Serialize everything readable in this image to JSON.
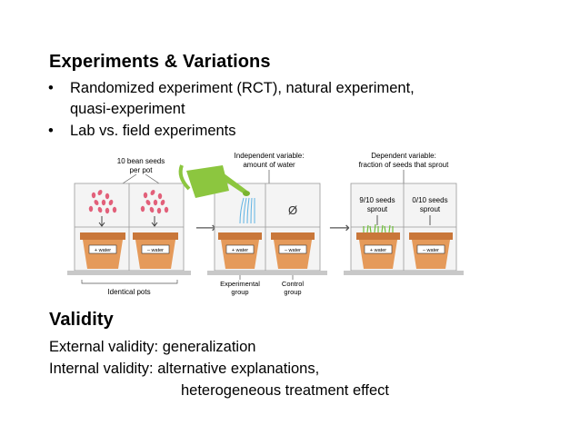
{
  "slide": {
    "heading1": "Experiments & Variations",
    "bullets": [
      {
        "line1": "Randomized experiment (RCT), natural experiment,",
        "line2": "quasi-experiment"
      },
      {
        "line1": "Lab vs. field experiments",
        "line2": ""
      }
    ],
    "bullet_glyph": "•",
    "heading2": "Validity",
    "external_validity": "External validity: generalization",
    "internal_validity": "Internal validity: alternative explanations,",
    "internal_validity_cont": "heterogeneous treatment effect"
  },
  "figure": {
    "seeds_label_1": "10 bean seeds",
    "seeds_label_2": "per pot",
    "indep_label_1": "Independent variable:",
    "indep_label_2": "amount of water",
    "dep_label_1": "Dependent variable:",
    "dep_label_2": "fraction of seeds that sprout",
    "null_symbol": "Ø",
    "pot_label_water": "+ water",
    "pot_label_no_water": "– water",
    "sprout_left_1": "9/10 seeds",
    "sprout_left_2": "sprout",
    "sprout_right_1": "0/10 seeds",
    "sprout_right_2": "sprout",
    "identical_pots": "Identical pots",
    "experimental_group_1": "Experimental",
    "experimental_group_2": "group",
    "control_group_1": "Control",
    "control_group_2": "group",
    "arrow": "⟶",
    "colors": {
      "pot": "#e59a5a",
      "pot_rim": "#c9773a",
      "soil": "#8a5a3a",
      "seed": "#e2607a",
      "watering_can": "#8cc63f",
      "water": "#5fb3e3",
      "sprout": "#6fbf3a",
      "panel_bg": "#f2f2f2",
      "panel_line": "#8a8a8a"
    }
  }
}
